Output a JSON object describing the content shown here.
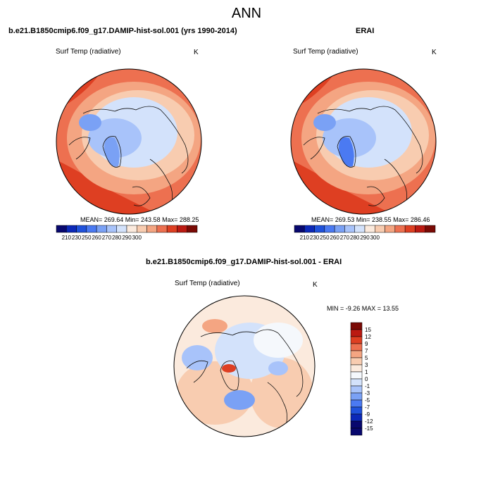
{
  "title": "ANN",
  "colors": {
    "abs_scale": [
      "#08086e",
      "#0c29b8",
      "#2052db",
      "#4b7af2",
      "#7aa1f5",
      "#a8c3fa",
      "#d3e2fb",
      "#fbeadd",
      "#f8ccb0",
      "#f4a582",
      "#ed7050",
      "#de3f22",
      "#bb1a12",
      "#7a0a05"
    ],
    "diff_scale": [
      "#08086e",
      "#0c29b8",
      "#2052db",
      "#4b7af2",
      "#7aa1f5",
      "#a8c3fa",
      "#d3e2fb",
      "#f5f8fc",
      "#fbeadd",
      "#f8ccb0",
      "#f4a582",
      "#ed7050",
      "#de3f22",
      "#bb1a12",
      "#7a0a05"
    ],
    "land_outline": "#111111"
  },
  "chart_data": [
    {
      "type": "heatmap",
      "projection": "north-polar-stereographic",
      "title": "b.e21.B1850cmip6.f09_g17.DAMIP-hist-sol.001 (yrs 1990-2014)",
      "variable": "Surf Temp (radiative)",
      "units": "K",
      "stats_text": "MEAN= 269.64  Min= 243.58  Max= 288.25",
      "mean": 269.64,
      "min": 243.58,
      "max": 288.25,
      "colorbar": {
        "orientation": "horizontal",
        "tick_labels": [
          "210",
          "230",
          "250",
          "260",
          "270",
          "280",
          "290",
          "300"
        ]
      }
    },
    {
      "type": "heatmap",
      "projection": "north-polar-stereographic",
      "title": "ERAI",
      "variable": "Surf Temp (radiative)",
      "units": "K",
      "stats_text": "MEAN= 269.53  Min= 238.55  Max= 286.46",
      "mean": 269.53,
      "min": 238.55,
      "max": 286.46,
      "colorbar": {
        "orientation": "horizontal",
        "tick_labels": [
          "210",
          "230",
          "250",
          "260",
          "270",
          "280",
          "290",
          "300"
        ]
      }
    },
    {
      "type": "heatmap",
      "projection": "north-polar-stereographic",
      "title": "b.e21.B1850cmip6.f09_g17.DAMIP-hist-sol.001 - ERAI",
      "variable": "Surf Temp (radiative)",
      "units": "K",
      "stats_text": "MIN =  -9.26 MAX =  13.55",
      "min": -9.26,
      "max": 13.55,
      "colorbar": {
        "orientation": "vertical",
        "tick_labels": [
          "15",
          "12",
          "9",
          "7",
          "5",
          "3",
          "1",
          "0",
          "-1",
          "-3",
          "-5",
          "-7",
          "-9",
          "-12",
          "-15"
        ]
      }
    }
  ]
}
